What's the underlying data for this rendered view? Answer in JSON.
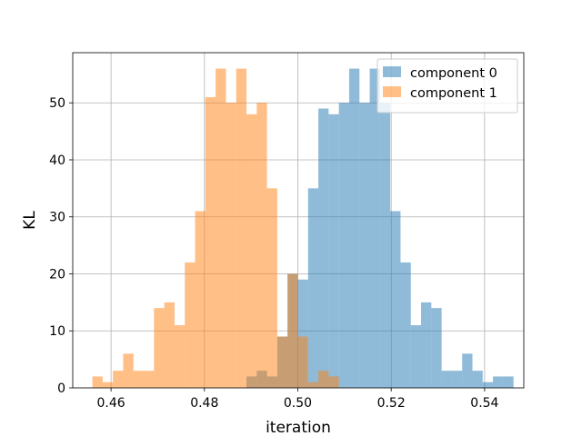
{
  "chart_data": {
    "type": "histogram",
    "xlabel": "iteration",
    "ylabel": "KL",
    "xlim": [
      0.4518,
      0.5484
    ],
    "ylim": [
      0,
      58.8
    ],
    "grid": true,
    "legend_position": "top-right",
    "bin_width": 0.0022,
    "xticks": [
      0.46,
      0.48,
      0.5,
      0.52,
      0.54
    ],
    "xtick_labels": [
      "0.46",
      "0.48",
      "0.50",
      "0.52",
      "0.54"
    ],
    "yticks": [
      0,
      10,
      20,
      30,
      40,
      50
    ],
    "ytick_labels": [
      "0",
      "10",
      "20",
      "30",
      "40",
      "50"
    ],
    "series": [
      {
        "name": "component 0",
        "color": "#1f77b4",
        "alpha": 0.5,
        "bin_start": 0.489,
        "counts": [
          2,
          3,
          2,
          9,
          20,
          19,
          35,
          49,
          48,
          50,
          56,
          50,
          56,
          50,
          31,
          22,
          11,
          15,
          14,
          3,
          3,
          6,
          3,
          1,
          2,
          2
        ]
      },
      {
        "name": "component 1",
        "color": "#ff7f0e",
        "alpha": 0.5,
        "bin_start": 0.456,
        "counts": [
          2,
          1,
          3,
          6,
          3,
          3,
          14,
          15,
          11,
          22,
          31,
          51,
          56,
          50,
          56,
          48,
          50,
          35,
          9,
          20,
          9,
          1,
          3,
          2
        ]
      }
    ]
  }
}
